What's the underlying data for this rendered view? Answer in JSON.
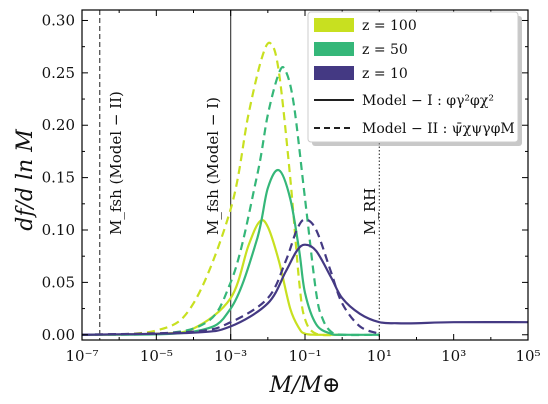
{
  "chart_data": {
    "type": "line",
    "xlabel": "M/M⊕",
    "ylabel": "df/d ln M",
    "xscale": "log",
    "xlim": [
      1e-07,
      100000.0
    ],
    "ylim": [
      -0.005,
      0.31
    ],
    "x_ticks": [
      "10⁻⁷",
      "10⁻⁵",
      "10⁻³",
      "10⁻¹",
      "10¹",
      "10³",
      "10⁵"
    ],
    "y_ticks": [
      "0.00",
      "0.05",
      "0.10",
      "0.15",
      "0.20",
      "0.25",
      "0.30"
    ],
    "legend_position": "top-right",
    "legend": {
      "series": [
        {
          "label": "z = 100",
          "color": "#c8e020"
        },
        {
          "label": "z = 50",
          "color": "#35b779"
        },
        {
          "label": "z = 10",
          "color": "#443983"
        }
      ],
      "styles": [
        {
          "label": "Model − I :  φγ²φχ²",
          "dash": "solid"
        },
        {
          "label": "Model − II :  ψ̄χψγφM",
          "dash": "dashed"
        }
      ]
    },
    "vertical_lines": [
      {
        "x": 3e-07,
        "style": "dashed",
        "label": "M_fsh (Model − II)"
      },
      {
        "x": 0.001,
        "style": "solid",
        "label": "M_fsh (Model − I)"
      },
      {
        "x": 10,
        "style": "dotted",
        "label": "M_RH"
      }
    ],
    "series": [
      {
        "color": "#c8e020",
        "dash": "solid",
        "x": [
          1e-07,
          1e-05,
          0.0001,
          0.001,
          0.003,
          0.006,
          0.01,
          0.02,
          0.04,
          0.07,
          0.1,
          0.2,
          1
        ],
        "y": [
          0,
          0.001,
          0.006,
          0.035,
          0.085,
          0.108,
          0.103,
          0.07,
          0.025,
          0.006,
          0.001,
          0,
          0
        ]
      },
      {
        "color": "#c8e020",
        "dash": "dashed",
        "x": [
          1e-07,
          1e-05,
          0.0001,
          0.001,
          0.003,
          0.007,
          0.012,
          0.02,
          0.04,
          0.07,
          0.1,
          0.2,
          1
        ],
        "y": [
          0,
          0.004,
          0.03,
          0.12,
          0.21,
          0.265,
          0.278,
          0.25,
          0.15,
          0.05,
          0.015,
          0.001,
          0
        ]
      },
      {
        "color": "#35b779",
        "dash": "solid",
        "x": [
          1e-07,
          0.0001,
          0.001,
          0.005,
          0.01,
          0.02,
          0.04,
          0.07,
          0.1,
          0.2,
          0.5,
          1,
          10
        ],
        "y": [
          0,
          0.003,
          0.025,
          0.09,
          0.14,
          0.157,
          0.13,
          0.08,
          0.04,
          0.01,
          0.001,
          0,
          0
        ]
      },
      {
        "color": "#35b779",
        "dash": "dashed",
        "x": [
          1e-07,
          0.0001,
          0.001,
          0.005,
          0.01,
          0.02,
          0.03,
          0.05,
          0.1,
          0.2,
          0.3,
          0.5,
          1,
          10
        ],
        "y": [
          0,
          0.006,
          0.05,
          0.15,
          0.21,
          0.25,
          0.252,
          0.22,
          0.13,
          0.04,
          0.015,
          0.003,
          0,
          0
        ]
      },
      {
        "color": "#443983",
        "dash": "solid",
        "x": [
          1e-07,
          0.0001,
          0.001,
          0.01,
          0.03,
          0.06,
          0.1,
          0.2,
          0.5,
          1,
          3,
          10,
          30,
          100,
          1000,
          100000
        ],
        "y": [
          0,
          0.002,
          0.008,
          0.03,
          0.06,
          0.08,
          0.086,
          0.08,
          0.055,
          0.035,
          0.02,
          0.012,
          0.011,
          0.011,
          0.012,
          0.012
        ]
      },
      {
        "color": "#443983",
        "dash": "dashed",
        "x": [
          1e-07,
          0.0001,
          0.001,
          0.01,
          0.03,
          0.06,
          0.1,
          0.2,
          0.5,
          1,
          3,
          10
        ],
        "y": [
          0,
          0.003,
          0.012,
          0.035,
          0.07,
          0.1,
          0.11,
          0.1,
          0.06,
          0.03,
          0.008,
          0.001
        ]
      }
    ]
  }
}
